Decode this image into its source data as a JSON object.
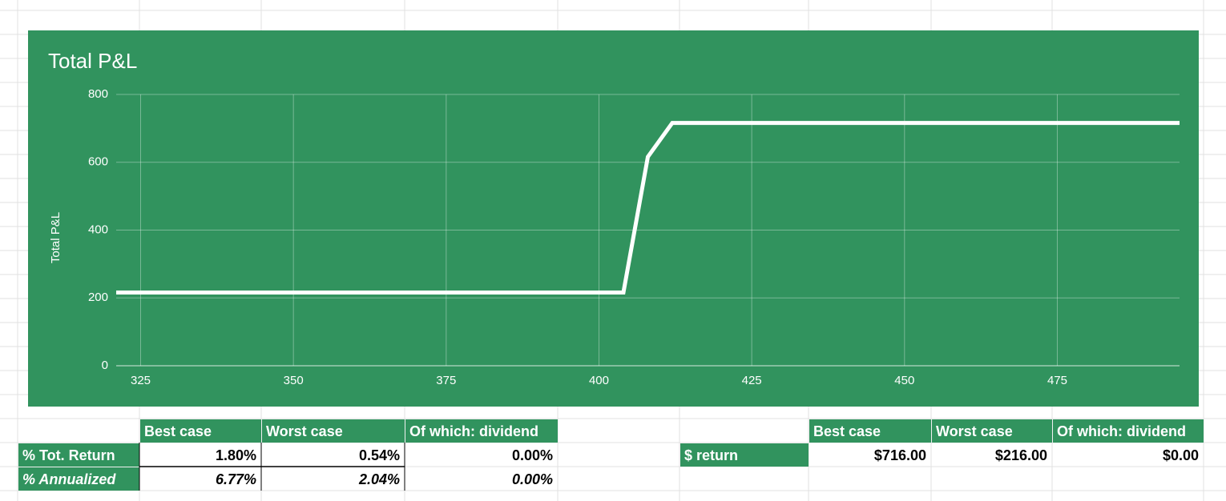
{
  "chart_data": {
    "type": "line",
    "title": "Total P&L",
    "ylabel": "Total P&L",
    "x": [
      321,
      404,
      408,
      412,
      495
    ],
    "values": [
      216,
      216,
      616,
      716,
      716
    ],
    "color": "#ffffff",
    "xlim": [
      321,
      495
    ],
    "xticks": [
      325,
      350,
      375,
      400,
      425,
      450,
      475
    ],
    "ylim": [
      0,
      800
    ],
    "yticks": [
      0,
      200,
      400,
      600,
      800
    ],
    "grid": true
  },
  "tables": [
    {
      "columns": [
        "Best case",
        "Worst case",
        "Of which: dividend"
      ],
      "rows": [
        [
          "% Tot. Return",
          "1.80%",
          "0.54%",
          "0.00%"
        ],
        [
          "% Annualized",
          "6.77%",
          "2.04%",
          "0.00%"
        ]
      ]
    },
    {
      "columns": [
        "Best case",
        "Worst case",
        "Of which: dividend"
      ],
      "rows": [
        [
          "$ return",
          "$716.00",
          "$216.00",
          "$0.00"
        ]
      ]
    }
  ]
}
